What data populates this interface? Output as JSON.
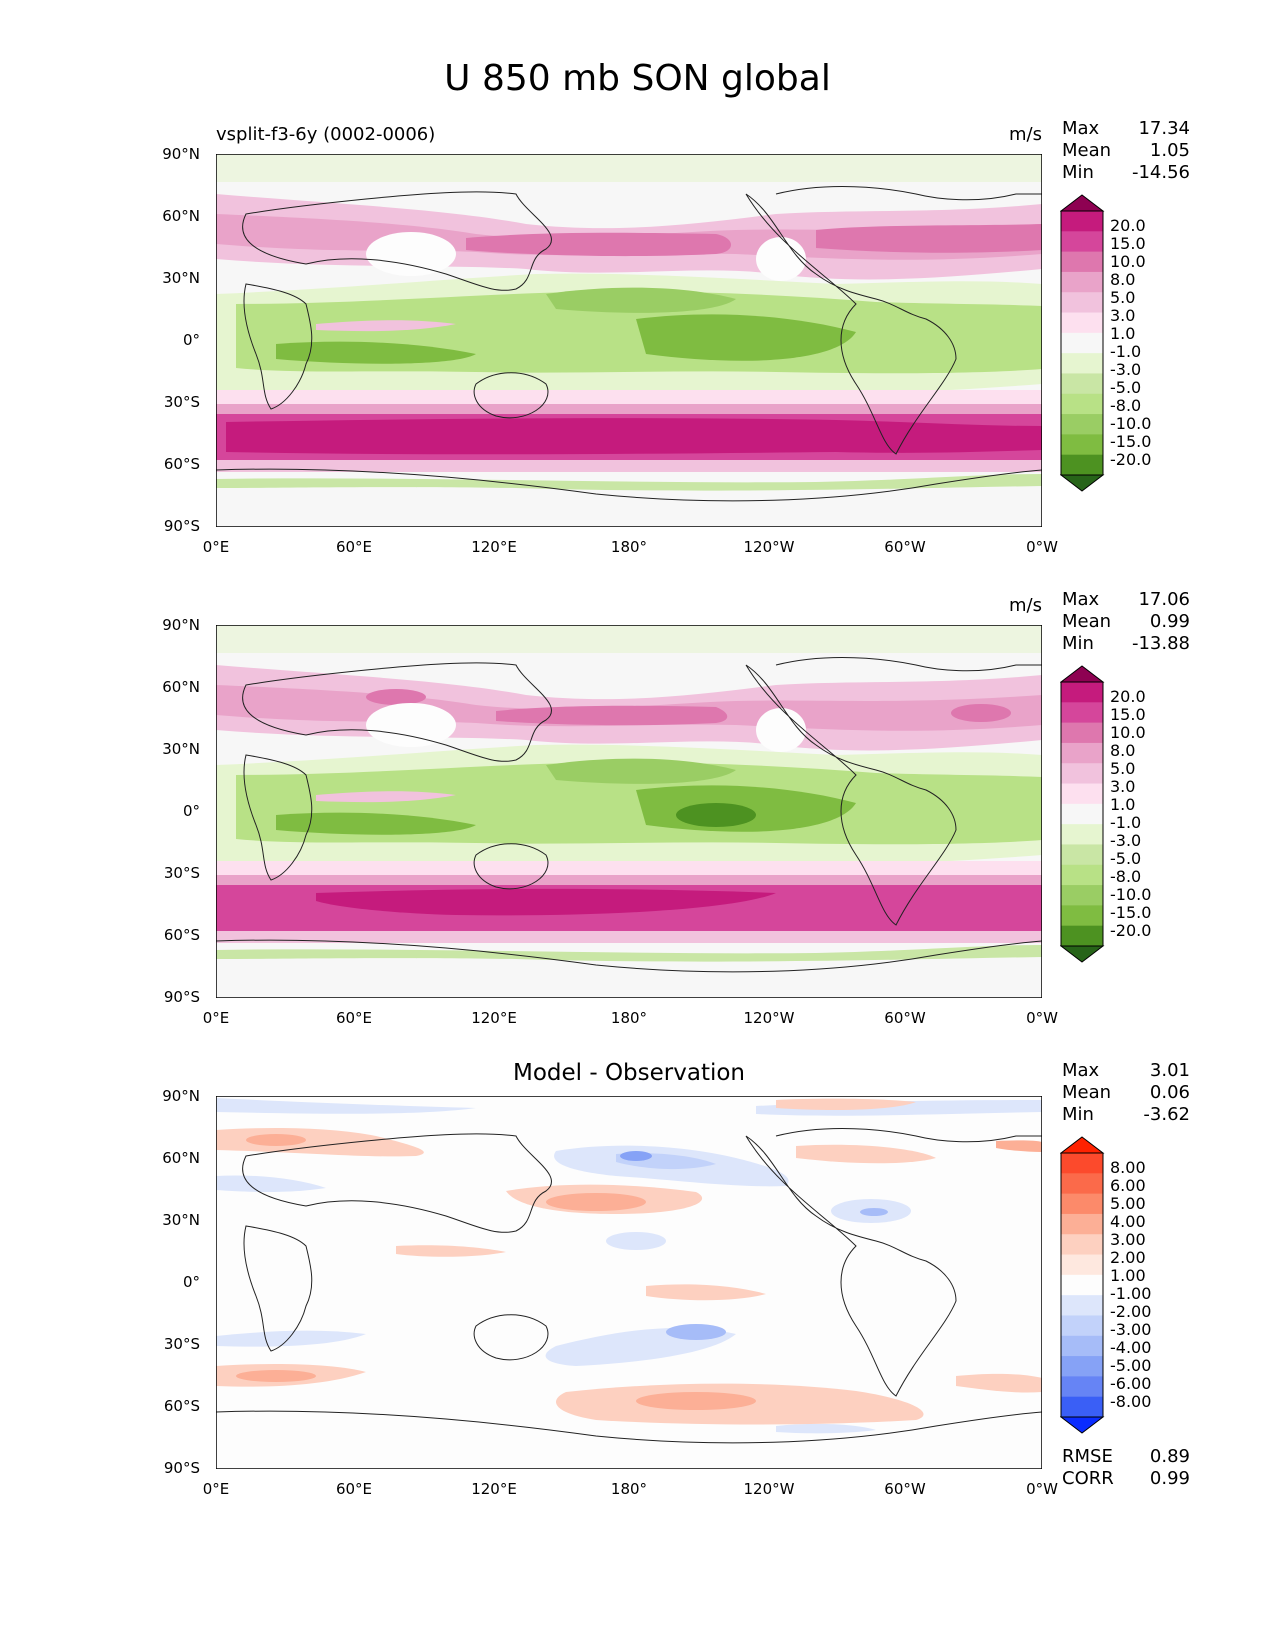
{
  "title": "U 850 mb SON global",
  "panels": [
    {
      "subtitle": "vsplit-f3-6y (0002-0006)",
      "center_title": "",
      "units": "m/s",
      "stats": [
        {
          "label": "Max",
          "value": "17.34"
        },
        {
          "label": "Mean",
          "value": "1.05"
        },
        {
          "label": "Min",
          "value": "-14.56"
        }
      ],
      "colorbar": {
        "labels": [
          "20.0",
          "15.0",
          "10.0",
          "8.0",
          "5.0",
          "3.0",
          "1.0",
          "-1.0",
          "-3.0",
          "-5.0",
          "-8.0",
          "-10.0",
          "-15.0",
          "-20.0"
        ],
        "colors": [
          "#8e0152",
          "#c51b7d",
          "#d5469b",
          "#de77ae",
          "#e9a3c9",
          "#f1c2dd",
          "#fde0ef",
          "#f7f7f7",
          "#e6f5d0",
          "#c9e6a5",
          "#b8e186",
          "#9acd64",
          "#7fbc41",
          "#4d9221",
          "#276419"
        ]
      },
      "metrics": []
    },
    {
      "subtitle": "",
      "center_title": "",
      "units": "m/s",
      "stats": [
        {
          "label": "Max",
          "value": "17.06"
        },
        {
          "label": "Mean",
          "value": "0.99"
        },
        {
          "label": "Min",
          "value": "-13.88"
        }
      ],
      "colorbar": {
        "labels": [
          "20.0",
          "15.0",
          "10.0",
          "8.0",
          "5.0",
          "3.0",
          "1.0",
          "-1.0",
          "-3.0",
          "-5.0",
          "-8.0",
          "-10.0",
          "-15.0",
          "-20.0"
        ],
        "colors": [
          "#8e0152",
          "#c51b7d",
          "#d5469b",
          "#de77ae",
          "#e9a3c9",
          "#f1c2dd",
          "#fde0ef",
          "#f7f7f7",
          "#e6f5d0",
          "#c9e6a5",
          "#b8e186",
          "#9acd64",
          "#7fbc41",
          "#4d9221",
          "#276419"
        ]
      },
      "metrics": []
    },
    {
      "subtitle": "",
      "center_title": "Model - Observation",
      "units": "",
      "stats": [
        {
          "label": "Max",
          "value": "3.01"
        },
        {
          "label": "Mean",
          "value": "0.06"
        },
        {
          "label": "Min",
          "value": "-3.62"
        }
      ],
      "colorbar": {
        "labels": [
          "8.00",
          "6.00",
          "5.00",
          "4.00",
          "3.00",
          "2.00",
          "1.00",
          "-1.00",
          "-2.00",
          "-3.00",
          "-4.00",
          "-5.00",
          "-6.00",
          "-8.00"
        ],
        "colors": [
          "#ff2200",
          "#fc4a2c",
          "#fb6a4a",
          "#fc8a6a",
          "#fcaf96",
          "#fdd0c0",
          "#fee8df",
          "#fdfdfd",
          "#dde6fb",
          "#c2d2fa",
          "#a6bcf8",
          "#86a2f6",
          "#6684f5",
          "#3a5ff6",
          "#0a2cff"
        ]
      },
      "metrics": [
        {
          "label": "RMSE",
          "value": "0.89"
        },
        {
          "label": "CORR",
          "value": "0.99"
        }
      ]
    }
  ],
  "lat_ticks": [
    "90°N",
    "60°N",
    "30°N",
    "0°",
    "30°S",
    "60°S",
    "90°S"
  ],
  "lon_ticks": [
    "0°E",
    "60°E",
    "120°E",
    "180°",
    "120°W",
    "60°W",
    "0°W"
  ]
}
